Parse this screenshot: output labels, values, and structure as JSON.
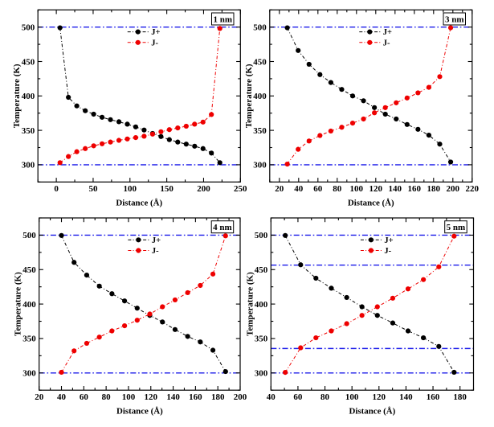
{
  "figure": {
    "title": "",
    "background": "#ffffff",
    "frame_color": "#000000",
    "hline_color": "#1c1cea",
    "series_colors": {
      "jplus": "#000000",
      "jminus": "#ee0000"
    },
    "legend_labels": {
      "jplus": "J+",
      "jminus": "J-"
    }
  },
  "chart_data": [
    {
      "type": "line",
      "panel_label": "1 nm",
      "xlabel": "Distance (Å)",
      "ylabel": "Temperature (K)",
      "xlim": [
        -25,
        250
      ],
      "ylim": [
        275,
        525
      ],
      "x_major_ticks": [
        0,
        50,
        100,
        150,
        200,
        250
      ],
      "x_minor_step": 25,
      "y_major_ticks": [
        300,
        350,
        400,
        450,
        500
      ],
      "y_minor_step": 25,
      "hlines": [
        500,
        300
      ],
      "legend_position": "upper center",
      "grid": false,
      "series": [
        {
          "name": "J+",
          "color": "#000000",
          "x": [
            5.0,
            16.4,
            27.8,
            39.3,
            50.7,
            62.1,
            73.5,
            85.0,
            96.4,
            107.8,
            119.2,
            130.7,
            142.1,
            153.5,
            164.9,
            176.4,
            187.8,
            199.2,
            210.6,
            222.1
          ],
          "y": [
            499,
            398,
            385.5,
            378.5,
            373.5,
            369,
            365.5,
            362.5,
            359,
            355,
            350.5,
            345.5,
            341,
            336.5,
            333,
            330,
            327,
            323.5,
            317,
            303
          ]
        },
        {
          "name": "J-",
          "color": "#ee0000",
          "x": [
            5.0,
            16.4,
            27.8,
            39.3,
            50.7,
            62.1,
            73.5,
            85.0,
            96.4,
            107.8,
            119.2,
            130.7,
            142.1,
            153.5,
            164.9,
            176.4,
            187.8,
            199.2,
            210.6,
            222.1
          ],
          "y": [
            303,
            312,
            319,
            323.5,
            327.5,
            330.5,
            333,
            335.5,
            337.5,
            339.5,
            341.5,
            344.5,
            348,
            351,
            353.5,
            356,
            359,
            362,
            373,
            498
          ]
        }
      ]
    },
    {
      "type": "line",
      "panel_label": "3 nm",
      "xlabel": "Distance (Å)",
      "ylabel": "Temperature (K)",
      "xlim": [
        10,
        220
      ],
      "ylim": [
        275,
        525
      ],
      "x_major_ticks": [
        20,
        40,
        60,
        80,
        100,
        120,
        140,
        160,
        180,
        200,
        220
      ],
      "x_minor_step": 10,
      "y_major_ticks": [
        300,
        350,
        400,
        450,
        500
      ],
      "y_minor_step": 25,
      "hlines": [
        500,
        300
      ],
      "legend_position": "upper center",
      "grid": false,
      "series": [
        {
          "name": "J+",
          "color": "#000000",
          "x": [
            28.2,
            39.5,
            50.8,
            62.1,
            73.4,
            84.7,
            96.0,
            107.3,
            118.6,
            129.9,
            141.2,
            152.5,
            163.8,
            175.1,
            186.4,
            197.7
          ],
          "y": [
            499,
            466,
            446,
            431,
            419.5,
            409.5,
            400,
            393,
            383,
            373.5,
            366.5,
            358.5,
            351.5,
            343,
            330,
            304
          ]
        },
        {
          "name": "J-",
          "color": "#ee0000",
          "x": [
            28.2,
            39.5,
            50.8,
            62.1,
            73.4,
            84.7,
            96.0,
            107.3,
            118.6,
            129.9,
            141.2,
            152.5,
            163.8,
            175.1,
            186.4,
            197.7
          ],
          "y": [
            301,
            322.5,
            334.5,
            342.5,
            349,
            354.5,
            360.5,
            366.5,
            375.5,
            383,
            390,
            397,
            404.5,
            412.5,
            428,
            499
          ]
        }
      ]
    },
    {
      "type": "line",
      "panel_label": "4 nm",
      "xlabel": "Distance (Å)",
      "ylabel": "Temperature (K)",
      "xlim": [
        20,
        200
      ],
      "ylim": [
        275,
        525
      ],
      "x_major_ticks": [
        20,
        40,
        60,
        80,
        100,
        120,
        140,
        160,
        180,
        200
      ],
      "x_minor_step": 10,
      "y_major_ticks": [
        300,
        350,
        400,
        450,
        500
      ],
      "y_minor_step": 25,
      "hlines": [
        500,
        300
      ],
      "legend_position": "upper center",
      "grid": false,
      "series": [
        {
          "name": "J+",
          "color": "#000000",
          "x": [
            40.0,
            51.3,
            62.6,
            73.9,
            85.2,
            96.5,
            107.8,
            119.1,
            130.4,
            141.7,
            153.0,
            164.3,
            175.6,
            186.9
          ],
          "y": [
            499.5,
            460.5,
            442,
            426,
            415,
            404.5,
            394,
            383.5,
            374,
            363,
            353,
            345,
            333,
            302
          ]
        },
        {
          "name": "J-",
          "color": "#ee0000",
          "x": [
            40.0,
            51.3,
            62.6,
            73.9,
            85.2,
            96.5,
            107.8,
            119.1,
            130.4,
            141.7,
            153.0,
            164.3,
            175.6,
            186.9
          ],
          "y": [
            301,
            332,
            343,
            352,
            361,
            368.5,
            376.5,
            385.5,
            396,
            406,
            416.5,
            427,
            443.5,
            499
          ]
        }
      ]
    },
    {
      "type": "line",
      "panel_label": "5 nm",
      "xlabel": "Distance (Å)",
      "ylabel": "Temperature (K)",
      "xlim": [
        40,
        190
      ],
      "ylim": [
        275,
        525
      ],
      "x_major_ticks": [
        40,
        60,
        80,
        100,
        120,
        140,
        160,
        180
      ],
      "x_minor_step": 10,
      "y_major_ticks": [
        300,
        350,
        400,
        450,
        500
      ],
      "y_minor_step": 25,
      "hlines": [
        500,
        456.5,
        335.5,
        300
      ],
      "legend_position": "upper center",
      "grid": false,
      "series": [
        {
          "name": "J+",
          "color": "#000000",
          "x": [
            50.6,
            62.0,
            73.3,
            84.7,
            96.1,
            107.4,
            118.8,
            130.2,
            141.5,
            152.9,
            164.3,
            175.6
          ],
          "y": [
            499.5,
            457,
            437.5,
            423,
            409.5,
            396,
            383.5,
            372.5,
            361,
            351,
            338.5,
            301
          ]
        },
        {
          "name": "J-",
          "color": "#ee0000",
          "x": [
            50.6,
            62.0,
            73.3,
            84.7,
            96.1,
            107.4,
            118.8,
            130.2,
            141.5,
            152.9,
            164.3,
            175.6
          ],
          "y": [
            300.8,
            336.5,
            351,
            361,
            371.5,
            383.5,
            396,
            408.5,
            422,
            435.5,
            454,
            498.5
          ]
        }
      ]
    }
  ]
}
